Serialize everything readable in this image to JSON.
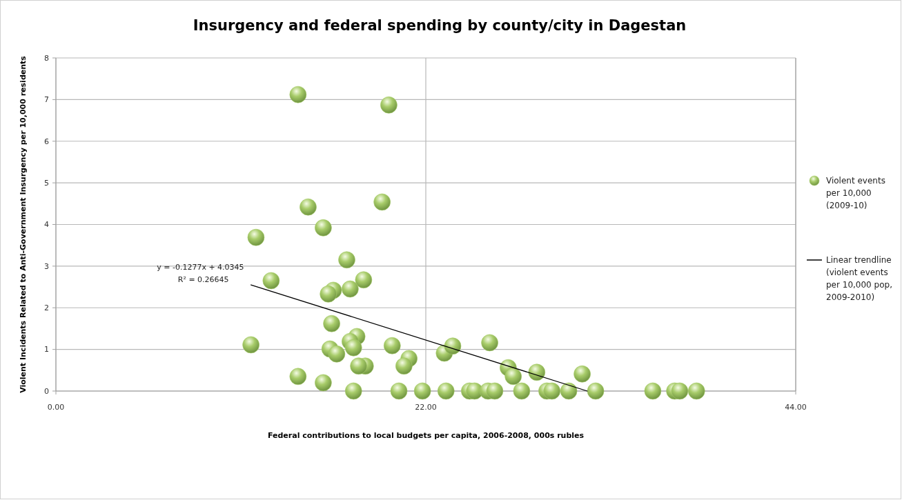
{
  "chart_data": {
    "type": "scatter",
    "title": "Insurgency and federal spending by county/city in Dagestan",
    "xlabel": "Federal contributions to local budgets per capita, 2006-2008, 000s rubles",
    "ylabel": "Violent Incidents Related to Anti-Government Insurgency per 10,000 residents",
    "xlim": [
      0,
      44
    ],
    "xticks": [
      {
        "value": 0,
        "label": "0.00"
      },
      {
        "value": 22,
        "label": "22.00"
      },
      {
        "value": 44,
        "label": "44.00"
      }
    ],
    "ylim": [
      0,
      8
    ],
    "yticks": [
      0,
      1,
      2,
      3,
      4,
      5,
      6,
      7,
      8
    ],
    "grid": true,
    "legend": "right",
    "marker": "circle",
    "annotations": [
      "y = -0.1277x + 4.0345",
      "R² = 0.26645"
    ],
    "series": [
      {
        "name": "Violent events per 10,000 (2009-10)",
        "color": "#a8cc6a",
        "x": [
          14.4,
          19.8,
          15.0,
          19.4,
          15.9,
          11.9,
          17.3,
          12.8,
          18.3,
          16.5,
          16.2,
          17.5,
          16.4,
          11.6,
          17.9,
          16.3,
          16.7,
          17.5,
          17.7,
          20.0,
          18.4,
          18.0,
          21.0,
          20.7,
          14.4,
          15.9,
          17.7,
          20.4,
          21.8,
          23.1,
          23.6,
          23.2,
          24.6,
          24.9,
          25.8,
          25.7,
          26.1,
          26.9,
          27.2,
          27.7,
          28.6,
          29.2,
          29.5,
          30.5,
          31.3,
          32.1,
          35.5,
          36.8,
          37.1,
          38.1
        ],
        "values": [
          7.12,
          6.87,
          4.42,
          4.54,
          3.92,
          3.69,
          3.15,
          2.65,
          2.67,
          2.42,
          2.33,
          2.45,
          1.62,
          1.11,
          1.31,
          1.01,
          0.89,
          1.19,
          1.04,
          1.09,
          0.6,
          0.6,
          0.78,
          0.6,
          0.35,
          0.2,
          0,
          0,
          0,
          0.91,
          1.08,
          0,
          0,
          0,
          1.16,
          0,
          0,
          0.56,
          0.35,
          0,
          0.45,
          0,
          0,
          0,
          0.41,
          0,
          0,
          0,
          0,
          0
        ]
      },
      {
        "name": "Linear trendline (violent events per 10,000 pop, 2009-2010)",
        "color": "#000000",
        "type": "line",
        "marker": "none",
        "x": [
          11.6,
          31.6
        ],
        "values": [
          2.55,
          0.0
        ]
      }
    ]
  }
}
